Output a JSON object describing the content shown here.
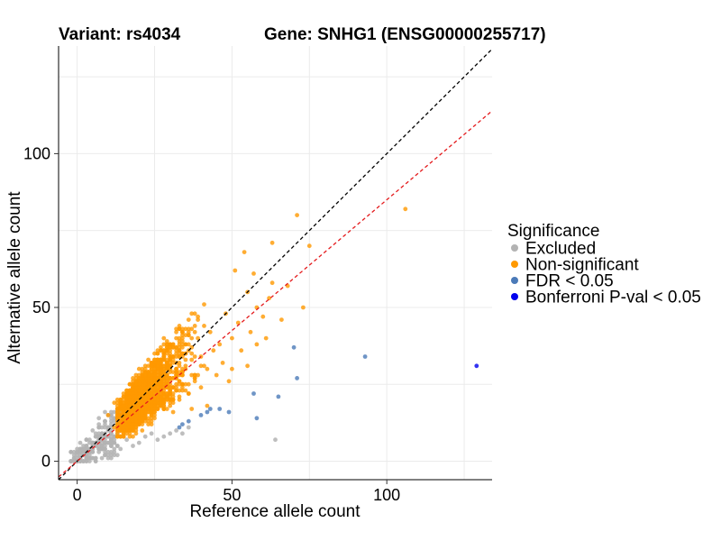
{
  "chart_data": {
    "type": "scatter",
    "title_variant": "Variant: rs4034",
    "title_gene": "Gene: SNHG1 (ENSG00000255717)",
    "xlabel": "Reference allele count",
    "ylabel": "Alternative allele count",
    "xlim": [
      -6,
      134
    ],
    "ylim": [
      -6,
      135
    ],
    "x_ticks": [
      0,
      50,
      100
    ],
    "y_ticks": [
      0,
      50,
      100
    ],
    "grid": true,
    "legend": {
      "title": "Significance",
      "position": "right",
      "items": [
        {
          "label": "Excluded",
          "color": "#b3b3b3"
        },
        {
          "label": "Non-significant",
          "color": "#ff9900"
        },
        {
          "label": "FDR < 0.05",
          "color": "#4b7ab8"
        },
        {
          "label": "Bonferroni P-val < 0.05",
          "color": "#0000ee"
        }
      ]
    },
    "reference_lines": [
      {
        "name": "y = x",
        "slope": 1.0,
        "intercept": 0,
        "color": "#000000",
        "dash": true
      },
      {
        "name": "fitted",
        "slope": 0.85,
        "intercept": 0,
        "color": "#e41a1c",
        "dash": true
      }
    ],
    "series": [
      {
        "name": "Excluded",
        "color": "#b3b3b3",
        "generated": {
          "count": 220,
          "x_range": [
            -2,
            14
          ],
          "ratio_range": [
            0.25,
            1.45
          ],
          "x_cap": 14
        },
        "points": [
          [
            2,
            5
          ],
          [
            3,
            2
          ],
          [
            4,
            7
          ],
          [
            5,
            3
          ],
          [
            6,
            9
          ],
          [
            7,
            11
          ],
          [
            8,
            6
          ],
          [
            9,
            13
          ],
          [
            10,
            8
          ],
          [
            11,
            10
          ],
          [
            12,
            7
          ],
          [
            13,
            9
          ],
          [
            14,
            8
          ],
          [
            16,
            7
          ],
          [
            18,
            5
          ],
          [
            20,
            6
          ],
          [
            22,
            8
          ],
          [
            24,
            9
          ],
          [
            26,
            7
          ],
          [
            28,
            8
          ],
          [
            30,
            9
          ],
          [
            32,
            10
          ],
          [
            34,
            9
          ],
          [
            36,
            11
          ],
          [
            64,
            7
          ],
          [
            0,
            3
          ],
          [
            1,
            6
          ],
          [
            5,
            10
          ],
          [
            7,
            14
          ],
          [
            9,
            16
          ]
        ]
      },
      {
        "name": "Non-significant",
        "color": "#ff9900",
        "generated": {
          "count": 1600,
          "x_range": [
            8,
            44
          ],
          "ratio_range": [
            0.65,
            1.3
          ],
          "x_cap": 12
        },
        "points": [
          [
            106,
            82
          ],
          [
            71,
            80
          ],
          [
            75,
            70
          ],
          [
            63,
            71
          ],
          [
            54,
            68
          ],
          [
            51,
            62
          ],
          [
            57,
            61
          ],
          [
            63,
            58
          ],
          [
            68,
            57
          ],
          [
            73,
            50
          ],
          [
            62,
            53
          ],
          [
            58,
            50
          ],
          [
            55,
            55
          ],
          [
            48,
            48
          ],
          [
            52,
            45
          ],
          [
            60,
            47
          ],
          [
            56,
            42
          ],
          [
            61,
            40
          ],
          [
            66,
            46
          ],
          [
            50,
            40
          ],
          [
            46,
            38
          ],
          [
            44,
            36
          ],
          [
            53,
            36
          ],
          [
            58,
            38
          ],
          [
            47,
            32
          ],
          [
            50,
            30
          ],
          [
            55,
            31
          ],
          [
            42,
            30
          ],
          [
            45,
            28
          ],
          [
            49,
            26
          ],
          [
            40,
            34
          ],
          [
            43,
            42
          ],
          [
            39,
            46
          ],
          [
            36,
            41
          ],
          [
            41,
            44
          ],
          [
            35,
            38
          ],
          [
            33,
            36
          ],
          [
            30,
            36
          ],
          [
            28,
            40
          ],
          [
            25,
            33
          ],
          [
            22,
            30
          ],
          [
            20,
            28
          ],
          [
            18,
            25
          ],
          [
            15,
            22
          ],
          [
            12,
            19
          ],
          [
            10,
            15
          ],
          [
            30,
            24
          ],
          [
            33,
            20
          ],
          [
            36,
            22
          ],
          [
            38,
            27
          ],
          [
            27,
            18
          ],
          [
            24,
            16
          ],
          [
            21,
            14
          ],
          [
            18,
            12
          ],
          [
            15,
            11
          ],
          [
            40,
            24
          ],
          [
            42,
            18
          ],
          [
            37,
            17
          ],
          [
            31,
            16
          ]
        ]
      },
      {
        "name": "FDR < 0.05",
        "color": "#4b7ab8",
        "points": [
          [
            93,
            34
          ],
          [
            71,
            27
          ],
          [
            70,
            37
          ],
          [
            65,
            21
          ],
          [
            57,
            22
          ],
          [
            58,
            14
          ],
          [
            49,
            16
          ],
          [
            46,
            17
          ],
          [
            43,
            17
          ],
          [
            42,
            16
          ],
          [
            34,
            12
          ],
          [
            33,
            11
          ],
          [
            40,
            15
          ],
          [
            36,
            13
          ]
        ]
      },
      {
        "name": "Bonferroni P-val < 0.05",
        "color": "#0000ee",
        "points": [
          [
            129,
            31
          ]
        ]
      }
    ]
  }
}
